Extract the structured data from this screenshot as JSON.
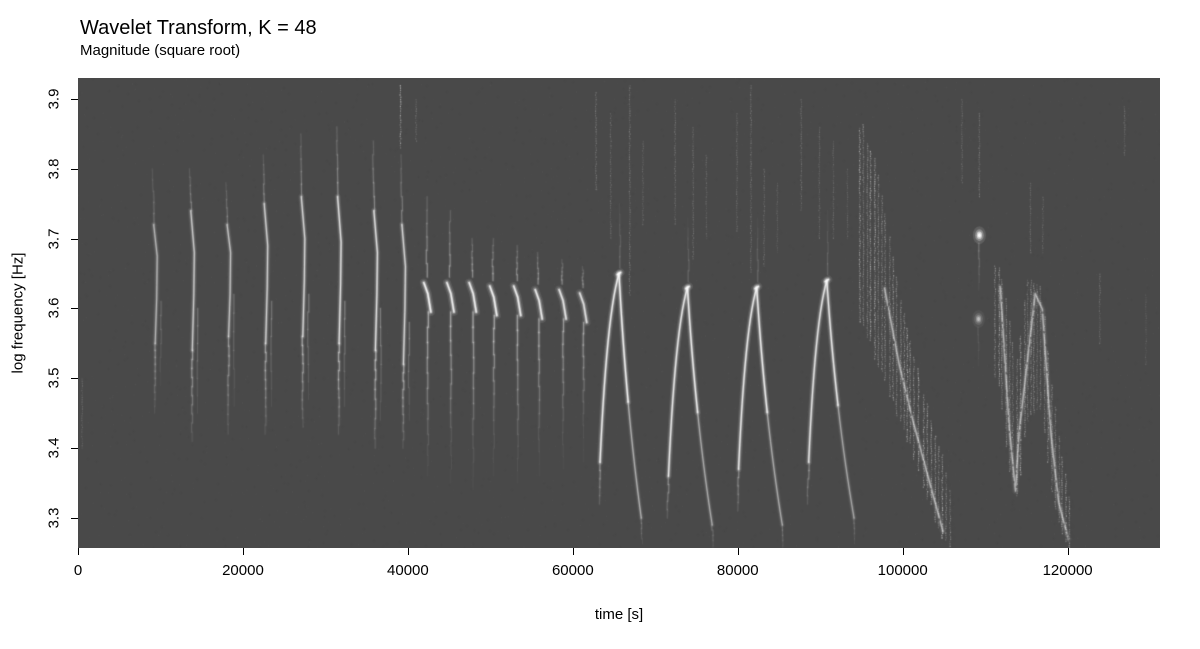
{
  "chart_data": {
    "type": "heatmap",
    "title": "Wavelet Transform, K = 48",
    "subtitle": "Magnitude (square root)",
    "colormap": "grayscale",
    "background_value_color": "#494949",
    "peak_value_color": "#ffffff",
    "axes": {
      "x": {
        "label": "time [s]",
        "range": [
          0,
          131200
        ],
        "tick_values": [
          0,
          20000,
          40000,
          60000,
          80000,
          100000,
          120000
        ],
        "tick_labels": [
          "0",
          "20000",
          "40000",
          "60000",
          "80000",
          "100000",
          "120000"
        ]
      },
      "y": {
        "label": "log frequency [Hz]",
        "range": [
          3.257,
          3.93
        ],
        "tick_values": [
          3.3,
          3.4,
          3.5,
          3.6,
          3.7,
          3.8,
          3.9
        ],
        "tick_labels": [
          "3.3",
          "3.4",
          "3.5",
          "3.6",
          "3.7",
          "3.8",
          "3.9"
        ]
      }
    },
    "events": {
      "downchirps": [
        {
          "t": 9300,
          "top_f": 3.8,
          "arc_f0": 3.72,
          "arc_f1": 3.55,
          "tail_f": 3.45,
          "intensity": 0.55
        },
        {
          "t": 13800,
          "top_f": 3.8,
          "arc_f0": 3.74,
          "arc_f1": 3.54,
          "tail_f": 3.41,
          "intensity": 0.7
        },
        {
          "t": 18200,
          "top_f": 3.78,
          "arc_f0": 3.72,
          "arc_f1": 3.56,
          "tail_f": 3.42,
          "intensity": 0.65
        },
        {
          "t": 22700,
          "top_f": 3.82,
          "arc_f0": 3.75,
          "arc_f1": 3.55,
          "tail_f": 3.42,
          "intensity": 0.75
        },
        {
          "t": 27200,
          "top_f": 3.85,
          "arc_f0": 3.76,
          "arc_f1": 3.56,
          "tail_f": 3.43,
          "intensity": 0.8
        },
        {
          "t": 31600,
          "top_f": 3.86,
          "arc_f0": 3.76,
          "arc_f1": 3.55,
          "tail_f": 3.42,
          "intensity": 0.9
        },
        {
          "t": 36000,
          "top_f": 3.84,
          "arc_f0": 3.74,
          "arc_f1": 3.54,
          "tail_f": 3.4,
          "intensity": 0.9
        },
        {
          "t": 39400,
          "top_f": 3.82,
          "arc_f0": 3.72,
          "arc_f1": 3.52,
          "tail_f": 3.4,
          "intensity": 0.8
        }
      ],
      "tone_bursts": [
        {
          "t": 42300,
          "f": 3.625,
          "top_f": 3.76,
          "tail_f": 3.42,
          "deep_f": 3.36,
          "intensity": 0.95
        },
        {
          "t": 45100,
          "f": 3.625,
          "top_f": 3.74,
          "tail_f": 3.43,
          "deep_f": 3.35,
          "intensity": 0.9
        },
        {
          "t": 47800,
          "f": 3.625,
          "top_f": 3.7,
          "tail_f": 3.42,
          "deep_f": 3.34,
          "intensity": 0.9
        },
        {
          "t": 50300,
          "f": 3.62,
          "top_f": 3.7,
          "tail_f": 3.44,
          "deep_f": 3.36,
          "intensity": 0.92
        },
        {
          "t": 53200,
          "f": 3.62,
          "top_f": 3.69,
          "tail_f": 3.42,
          "deep_f": 3.35,
          "intensity": 0.88
        },
        {
          "t": 55800,
          "f": 3.615,
          "top_f": 3.68,
          "tail_f": 3.43,
          "deep_f": 3.36,
          "intensity": 0.85
        },
        {
          "t": 58700,
          "f": 3.615,
          "top_f": 3.67,
          "tail_f": 3.44,
          "deep_f": 3.37,
          "intensity": 0.8
        },
        {
          "t": 61200,
          "f": 3.61,
          "top_f": 3.66,
          "tail_f": 3.45,
          "deep_f": 3.38,
          "intensity": 0.75
        }
      ],
      "chevrons": [
        {
          "t_start": 63300,
          "f_start": 3.38,
          "t_peak": 65600,
          "f_peak": 3.65,
          "t_end": 68300,
          "f_end": 3.3,
          "intensity": 1.0
        },
        {
          "t_start": 71600,
          "f_start": 3.36,
          "t_peak": 73900,
          "f_peak": 3.63,
          "t_end": 76900,
          "f_end": 3.29,
          "intensity": 0.95
        },
        {
          "t_start": 80100,
          "f_start": 3.37,
          "t_peak": 82300,
          "f_peak": 3.63,
          "t_end": 85400,
          "f_end": 3.29,
          "intensity": 0.95
        },
        {
          "t_start": 88600,
          "f_start": 3.38,
          "t_peak": 90800,
          "f_peak": 3.64,
          "t_end": 94100,
          "f_end": 3.3,
          "intensity": 0.9
        }
      ],
      "clusters": [
        {
          "t0": 94800,
          "t1": 106200,
          "striation_step": 500,
          "intensity": 0.6,
          "top_path": [
            [
              95200,
              3.86
            ],
            [
              97000,
              3.8
            ],
            [
              99000,
              3.66
            ],
            [
              101000,
              3.55
            ],
            [
              103000,
              3.46
            ],
            [
              105000,
              3.38
            ],
            [
              106000,
              3.33
            ]
          ],
          "bottom_path": [
            [
              95200,
              3.58
            ],
            [
              97000,
              3.52
            ],
            [
              99000,
              3.46
            ],
            [
              101000,
              3.4
            ],
            [
              103000,
              3.33
            ],
            [
              105000,
              3.27
            ],
            [
              106000,
              3.25
            ]
          ],
          "core": [
            [
              97800,
              3.63
            ],
            [
              99500,
              3.52
            ],
            [
              101200,
              3.44
            ],
            [
              103000,
              3.36
            ],
            [
              104800,
              3.28
            ]
          ]
        },
        {
          "t0": 111200,
          "t1": 120600,
          "striation_step": 450,
          "intensity": 0.6,
          "top_path": [
            [
              111600,
              3.66
            ],
            [
              112800,
              3.6
            ],
            [
              113800,
              3.52
            ],
            [
              115200,
              3.64
            ],
            [
              116800,
              3.63
            ],
            [
              118000,
              3.5
            ],
            [
              119200,
              3.4
            ],
            [
              120200,
              3.33
            ]
          ],
          "bottom_path": [
            [
              111600,
              3.5
            ],
            [
              112800,
              3.38
            ],
            [
              113800,
              3.33
            ],
            [
              115200,
              3.44
            ],
            [
              116800,
              3.46
            ],
            [
              118000,
              3.34
            ],
            [
              119200,
              3.28
            ],
            [
              120200,
              3.26
            ]
          ],
          "core": [
            [
              111800,
              3.63
            ],
            [
              113000,
              3.43
            ],
            [
              113600,
              3.34
            ],
            [
              114200,
              3.42
            ],
            [
              116000,
              3.62
            ],
            [
              116900,
              3.6
            ],
            [
              118000,
              3.42
            ],
            [
              119000,
              3.32
            ],
            [
              120000,
              3.27
            ]
          ]
        }
      ],
      "spots": [
        {
          "t": 109300,
          "f": 3.705,
          "intensity": 1.0
        },
        {
          "t": 109200,
          "f": 3.585,
          "intensity": 0.45
        }
      ],
      "streaks": [
        [
          500,
          3.5,
          3.4,
          0.25
        ],
        [
          39100,
          3.92,
          3.83,
          0.7
        ],
        [
          41000,
          3.9,
          3.84,
          0.3
        ],
        [
          62800,
          3.91,
          3.77,
          0.35
        ],
        [
          64600,
          3.88,
          3.7,
          0.3
        ],
        [
          66900,
          3.92,
          3.62,
          0.35
        ],
        [
          68500,
          3.84,
          3.72,
          0.25
        ],
        [
          72400,
          3.9,
          3.72,
          0.32
        ],
        [
          74600,
          3.86,
          3.67,
          0.3
        ],
        [
          76200,
          3.82,
          3.7,
          0.25
        ],
        [
          79900,
          3.88,
          3.71,
          0.3
        ],
        [
          81600,
          3.92,
          3.65,
          0.33
        ],
        [
          83200,
          3.8,
          3.66,
          0.28
        ],
        [
          84800,
          3.78,
          3.68,
          0.22
        ],
        [
          87700,
          3.9,
          3.74,
          0.3
        ],
        [
          89900,
          3.86,
          3.7,
          0.28
        ],
        [
          91600,
          3.84,
          3.7,
          0.25
        ],
        [
          93300,
          3.8,
          3.7,
          0.22
        ],
        [
          107200,
          3.9,
          3.78,
          0.25
        ],
        [
          109300,
          3.88,
          3.76,
          0.35
        ],
        [
          115500,
          3.78,
          3.68,
          0.3
        ],
        [
          117000,
          3.76,
          3.68,
          0.25
        ],
        [
          123900,
          3.65,
          3.55,
          0.3
        ],
        [
          126900,
          3.89,
          3.82,
          0.3
        ],
        [
          129500,
          3.62,
          3.52,
          0.2
        ]
      ]
    }
  }
}
